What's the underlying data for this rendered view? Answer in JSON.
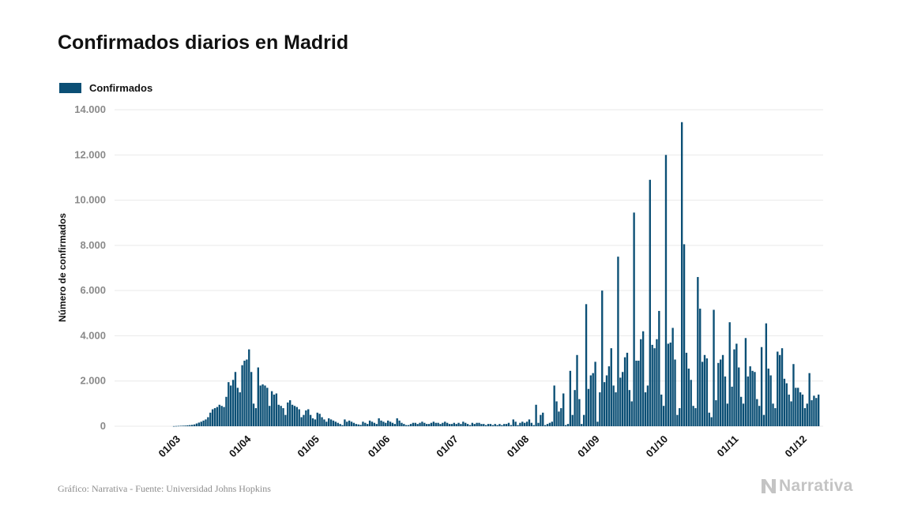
{
  "header": {
    "title": "Confirmados diarios en Madrid"
  },
  "footer": {
    "source": "Gráfico: Narrativa - Fuente: Universidad Johns Hopkins"
  },
  "brand": {
    "name": "Narrativa",
    "color": "#c4c4c4"
  },
  "colors": {
    "bar": "#0b4f75",
    "grid": "#e9e9e9"
  },
  "chart_data": {
    "type": "bar",
    "title": "Confirmados diarios en Madrid",
    "ylabel": "Número de confirmados",
    "xlabel": "",
    "ylim": [
      0,
      14000
    ],
    "y_ticks": [
      0,
      2000,
      4000,
      6000,
      8000,
      10000,
      12000,
      14000
    ],
    "y_tick_labels": [
      "0",
      "2.000",
      "4.000",
      "6.000",
      "8.000",
      "10.000",
      "12.000",
      "14.000"
    ],
    "x_tick_labels": [
      "01/03",
      "01/04",
      "01/05",
      "01/06",
      "01/07",
      "01/08",
      "01/09",
      "01/10",
      "01/11",
      "01/12"
    ],
    "x_range": [
      "2020-02-01",
      "2020-12-01"
    ],
    "grid": true,
    "legend": {
      "position": "top-left"
    },
    "series": [
      {
        "name": "Confirmados",
        "start_date": "2020-02-11",
        "values": [
          0,
          0,
          0,
          0,
          0,
          0,
          0,
          0,
          0,
          0,
          0,
          0,
          0,
          0,
          0,
          0,
          0,
          0,
          5,
          10,
          15,
          20,
          25,
          30,
          40,
          50,
          60,
          80,
          120,
          160,
          200,
          250,
          300,
          400,
          600,
          750,
          800,
          850,
          950,
          900,
          850,
          1300,
          1950,
          1800,
          2050,
          2400,
          1700,
          1500,
          2700,
          2900,
          2950,
          3400,
          2400,
          1000,
          800,
          2600,
          1800,
          1850,
          1800,
          1700,
          900,
          1550,
          1400,
          1450,
          950,
          900,
          800,
          500,
          1050,
          1150,
          950,
          900,
          850,
          750,
          400,
          500,
          700,
          750,
          500,
          350,
          300,
          600,
          550,
          400,
          300,
          200,
          350,
          300,
          250,
          200,
          150,
          100,
          50,
          300,
          200,
          250,
          200,
          150,
          100,
          80,
          60,
          200,
          150,
          100,
          250,
          200,
          150,
          100,
          350,
          250,
          200,
          150,
          250,
          200,
          150,
          100,
          350,
          250,
          150,
          100,
          50,
          50,
          100,
          150,
          150,
          100,
          150,
          200,
          150,
          100,
          100,
          150,
          200,
          150,
          150,
          100,
          150,
          200,
          150,
          100,
          100,
          150,
          100,
          150,
          100,
          200,
          150,
          100,
          50,
          150,
          100,
          150,
          150,
          100,
          100,
          50,
          100,
          100,
          50,
          100,
          50,
          100,
          50,
          100,
          100,
          150,
          50,
          300,
          200,
          50,
          150,
          200,
          150,
          200,
          300,
          150,
          50,
          950,
          150,
          500,
          600,
          50,
          100,
          150,
          200,
          1800,
          1100,
          650,
          800,
          1450,
          50,
          100,
          2450,
          500,
          1600,
          3150,
          1200,
          100,
          500,
          5400,
          1650,
          2250,
          2350,
          2850,
          200,
          1500,
          6000,
          1950,
          2250,
          2650,
          3450,
          1800,
          1500,
          7500,
          2150,
          2400,
          3050,
          3250,
          1600,
          1100,
          9450,
          2900,
          2900,
          3850,
          4200,
          1500,
          1800,
          10900,
          3600,
          3450,
          3850,
          5100,
          1400,
          900,
          12000,
          3650,
          3700,
          4350,
          2950,
          500,
          800,
          13450,
          8050,
          3250,
          2550,
          2050,
          900,
          800,
          6600,
          5200,
          2850,
          3150,
          3000,
          600,
          400,
          5150,
          1150,
          2800,
          2950,
          3150,
          2200,
          1000,
          4600,
          1750,
          3400,
          3650,
          2600,
          1300,
          1000,
          3900,
          2200,
          2650,
          2450,
          2400,
          1200,
          900,
          3500,
          500,
          4550,
          2550,
          2250,
          1000,
          800,
          3300,
          3150,
          3450,
          2100,
          1900,
          1400,
          1100,
          2750,
          1700,
          1700,
          1500,
          1400,
          800,
          1000,
          2350,
          1150,
          1350,
          1250,
          1400
        ]
      }
    ]
  }
}
